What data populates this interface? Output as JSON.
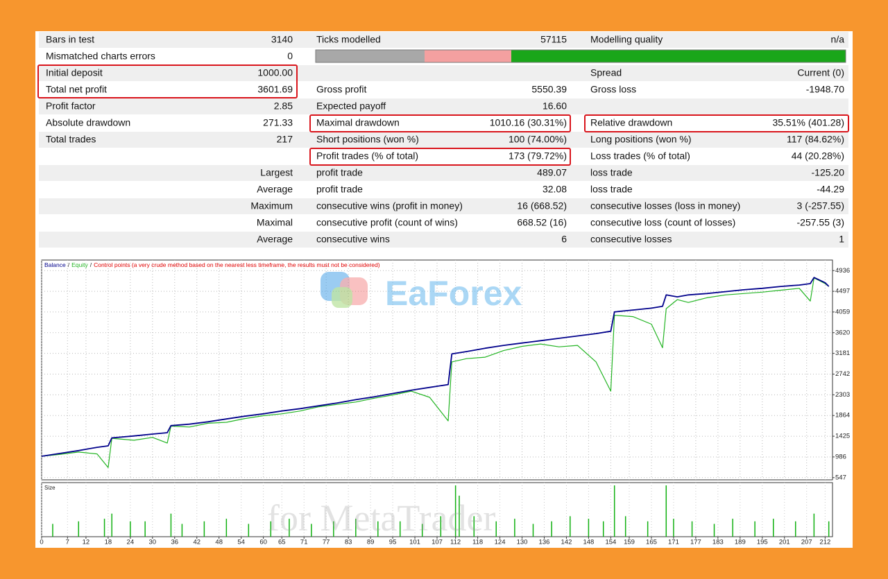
{
  "table": {
    "rows": [
      [
        "Bars in test",
        "3140",
        "Ticks modelled",
        "57115",
        "Modelling quality",
        "n/a"
      ],
      [
        "Mismatched charts errors",
        "0",
        null,
        null,
        null,
        null
      ],
      [
        "Initial deposit",
        "1000.00",
        null,
        null,
        "Spread",
        "Current (0)"
      ],
      [
        "Total net profit",
        "3601.69",
        "Gross profit",
        "5550.39",
        "Gross loss",
        "-1948.70"
      ],
      [
        "Profit factor",
        "2.85",
        "Expected payoff",
        "16.60",
        null,
        null
      ],
      [
        "Absolute drawdown",
        "271.33",
        "Maximal drawdown",
        "1010.16 (30.31%)",
        "Relative drawdown",
        "35.51% (401.28)"
      ],
      [
        "Total trades",
        "217",
        "Short positions (won %)",
        "100 (74.00%)",
        "Long positions (won %)",
        "117 (84.62%)"
      ],
      [
        null,
        null,
        "Profit trades (% of total)",
        "173 (79.72%)",
        "Loss trades (% of total)",
        "44 (20.28%)"
      ],
      [
        null,
        "Largest",
        "profit trade",
        "489.07",
        "loss trade",
        "-125.20"
      ],
      [
        null,
        "Average",
        "profit trade",
        "32.08",
        "loss trade",
        "-44.29"
      ],
      [
        null,
        "Maximum",
        "consecutive wins (profit in money)",
        "16 (668.52)",
        "consecutive losses (loss in money)",
        "3 (-257.55)"
      ],
      [
        null,
        "Maximal",
        "consecutive profit (count of wins)",
        "668.52 (16)",
        "consecutive loss (count of losses)",
        "-257.55 (3)"
      ],
      [
        null,
        "Average",
        "consecutive wins",
        "6",
        "consecutive losses",
        "1"
      ]
    ]
  },
  "watermark": {
    "brand": "EaForex",
    "tagline": "for MetaTrader"
  },
  "chart_data": {
    "type": "line",
    "legend_separator": "/",
    "legend_note": "Control points (a very crude method based on the nearest less timeframe, the results must not be considered)",
    "x": [
      0,
      5,
      10,
      15,
      18,
      19,
      25,
      30,
      34,
      35,
      40,
      45,
      50,
      55,
      60,
      65,
      70,
      75,
      80,
      85,
      90,
      95,
      100,
      105,
      110,
      111,
      115,
      120,
      125,
      130,
      135,
      140,
      145,
      150,
      154,
      155,
      160,
      165,
      168,
      169,
      172,
      175,
      180,
      185,
      190,
      195,
      200,
      205,
      208,
      209,
      212,
      213
    ],
    "series": [
      {
        "name": "Balance",
        "color": "#00008b",
        "values": [
          1000,
          1060,
          1120,
          1190,
          1220,
          1390,
          1430,
          1470,
          1500,
          1650,
          1680,
          1730,
          1790,
          1850,
          1900,
          1960,
          2010,
          2070,
          2130,
          2200,
          2260,
          2330,
          2400,
          2460,
          2520,
          3170,
          3220,
          3290,
          3350,
          3400,
          3450,
          3500,
          3550,
          3600,
          3650,
          4060,
          4100,
          4140,
          4180,
          4420,
          4380,
          4420,
          4450,
          4490,
          4530,
          4560,
          4600,
          4630,
          4660,
          4790,
          4680,
          4602
        ]
      },
      {
        "name": "Equity",
        "color": "#22b422",
        "values": [
          1000,
          1040,
          1090,
          1050,
          760,
          1380,
          1340,
          1400,
          1280,
          1640,
          1620,
          1700,
          1720,
          1800,
          1860,
          1900,
          1960,
          2050,
          2100,
          2150,
          2230,
          2300,
          2380,
          2250,
          1750,
          3000,
          3070,
          3100,
          3240,
          3330,
          3380,
          3320,
          3350,
          3000,
          2380,
          3990,
          3960,
          3800,
          3300,
          4130,
          4320,
          4260,
          4360,
          4420,
          4450,
          4480,
          4520,
          4560,
          4290,
          4780,
          4660,
          4600
        ]
      }
    ],
    "legend_note_color": "#e00000",
    "xlim": [
      0,
      214
    ],
    "xticks": [
      0,
      7,
      12,
      18,
      24,
      30,
      36,
      42,
      48,
      54,
      60,
      65,
      71,
      77,
      83,
      89,
      95,
      101,
      107,
      112,
      118,
      124,
      130,
      136,
      142,
      148,
      154,
      159,
      165,
      171,
      177,
      183,
      189,
      195,
      201,
      207,
      212
    ],
    "ylim": [
      500,
      5160
    ],
    "yticks": [
      547,
      986,
      1425,
      1864,
      2303,
      2742,
      3181,
      3620,
      4059,
      4497,
      4936
    ],
    "grid": true,
    "size": {
      "name": "Size",
      "color": "#10b010",
      "ylim": [
        0,
        1
      ],
      "x": [
        3,
        10,
        17,
        19,
        24,
        28,
        35,
        38,
        44,
        50,
        56,
        62,
        67,
        73,
        79,
        85,
        91,
        97,
        103,
        108,
        112,
        113,
        117,
        123,
        128,
        133,
        138,
        143,
        148,
        152,
        155,
        158,
        164,
        169,
        171,
        176,
        182,
        187,
        193,
        198,
        204,
        209,
        213
      ],
      "values": [
        0.25,
        0.3,
        0.35,
        0.45,
        0.3,
        0.3,
        0.45,
        0.25,
        0.3,
        0.35,
        0.25,
        0.3,
        0.35,
        0.25,
        0.3,
        0.35,
        0.3,
        0.3,
        0.25,
        0.4,
        1.0,
        0.8,
        0.4,
        0.3,
        0.35,
        0.25,
        0.3,
        0.4,
        0.35,
        0.3,
        1.0,
        0.4,
        0.3,
        1.0,
        0.35,
        0.3,
        0.25,
        0.35,
        0.3,
        0.35,
        0.3,
        0.45,
        0.3
      ]
    }
  }
}
